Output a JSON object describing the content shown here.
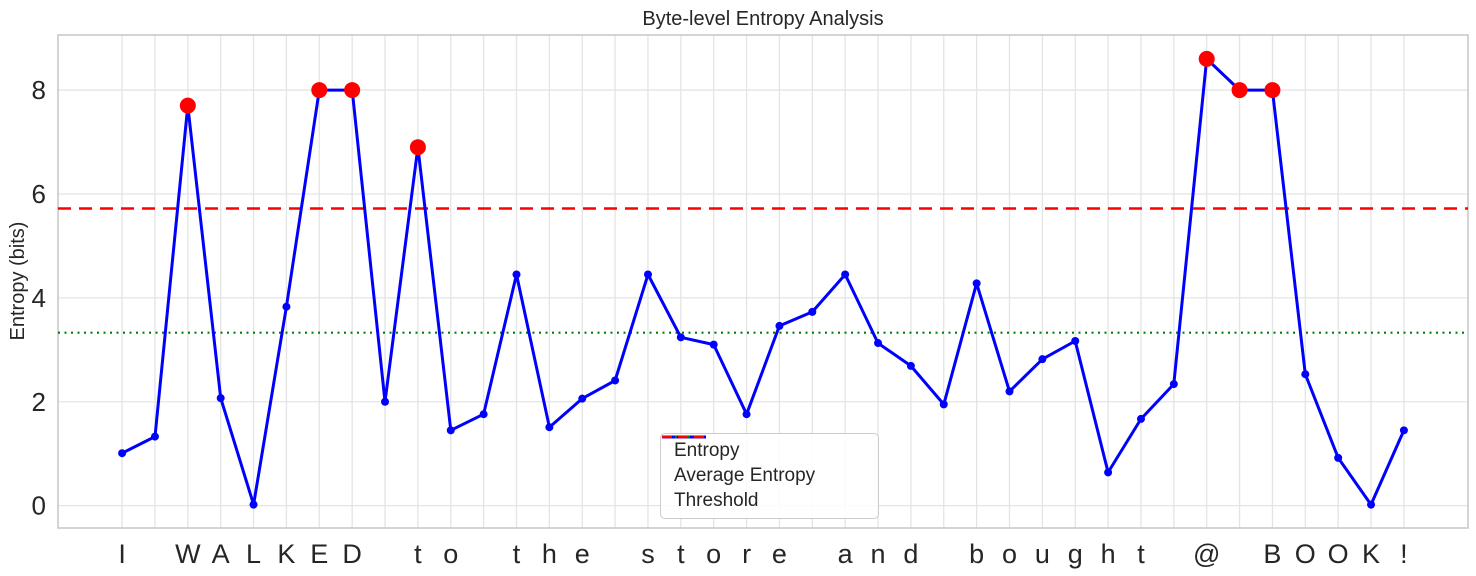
{
  "chart_data": {
    "type": "line",
    "title": "Byte-level Entropy Analysis",
    "xlabel": "",
    "ylabel": "Entropy (bits)",
    "categories": [
      "I",
      " ",
      "W",
      "A",
      "L",
      "K",
      "E",
      "D",
      " ",
      "t",
      "o",
      " ",
      "t",
      "h",
      "e",
      " ",
      "s",
      "t",
      "o",
      "r",
      "e",
      " ",
      "a",
      "n",
      "d",
      " ",
      "b",
      "o",
      "u",
      "g",
      "h",
      "t",
      " ",
      "@",
      " ",
      "B",
      "O",
      "O",
      "K",
      "!"
    ],
    "series": [
      {
        "name": "Entropy",
        "style": "solid",
        "color": "#0000ff",
        "values": [
          1.01,
          1.33,
          7.7,
          2.07,
          0.02,
          3.83,
          8.0,
          8.0,
          2.0,
          6.9,
          1.45,
          1.76,
          4.45,
          1.51,
          2.06,
          2.41,
          4.45,
          3.24,
          3.1,
          1.76,
          3.46,
          3.73,
          4.45,
          3.13,
          2.69,
          1.95,
          4.28,
          2.2,
          2.82,
          3.17,
          0.64,
          1.67,
          2.34,
          8.6,
          8.0,
          8.0,
          2.53,
          0.92,
          0.02,
          1.45
        ]
      },
      {
        "name": "Average Entropy",
        "style": "dotted",
        "color": "#008000",
        "value": 3.33
      },
      {
        "name": "Threshold",
        "style": "dashed",
        "color": "#ff0000",
        "value": 5.72
      }
    ],
    "highlight_points": {
      "description": "points above threshold, drawn as large red dots",
      "color": "#ff0000",
      "indices": [
        2,
        6,
        7,
        9,
        33,
        34,
        35
      ]
    },
    "yticks": [
      0,
      2,
      4,
      6,
      8
    ],
    "ylim": [
      -0.43,
      9.06
    ],
    "xlim": [
      -1.95,
      40.95
    ],
    "grid": true,
    "legend_position": "lower center-right inside plot"
  },
  "colors": {
    "grid": "#e4e4e4",
    "frame": "#c9c9c9",
    "text": "#262626",
    "background": "#ffffff"
  }
}
